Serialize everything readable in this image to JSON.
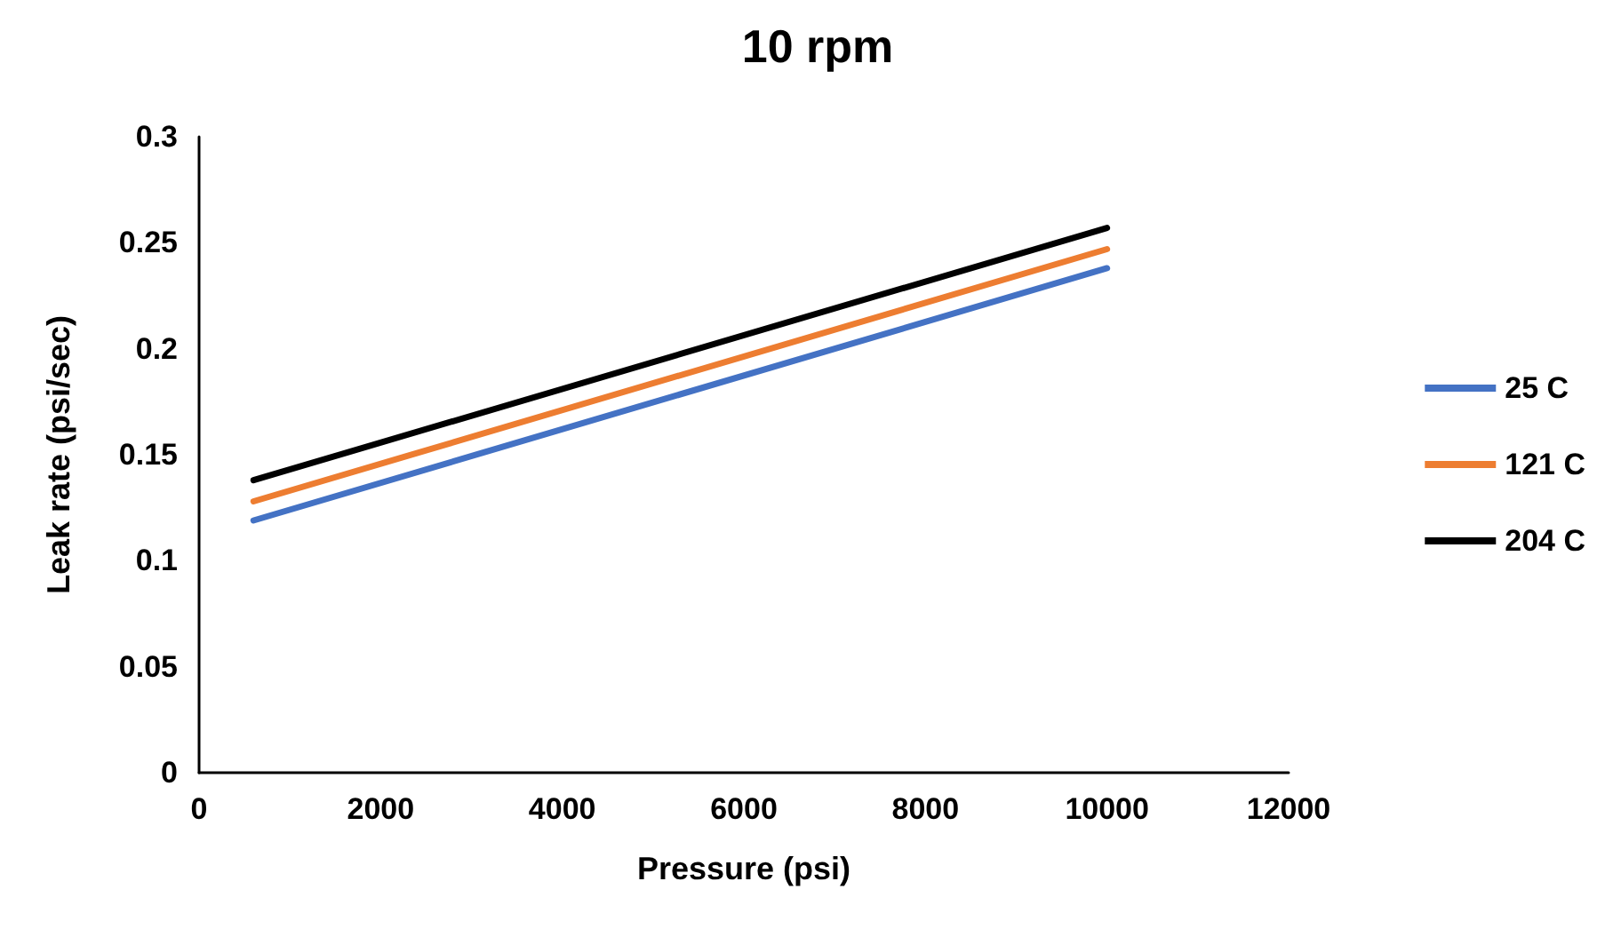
{
  "chart_data": {
    "type": "line",
    "title": "10 rpm",
    "xlabel": "Pressure (psi)",
    "ylabel": "Leak rate (psi/sec)",
    "xlim": [
      0,
      12000
    ],
    "xticks": [
      0,
      2000,
      4000,
      6000,
      8000,
      10000,
      12000
    ],
    "ylim": [
      0,
      0.3
    ],
    "yticks": [
      0,
      0.05,
      0.1,
      0.15,
      0.2,
      0.25,
      0.3
    ],
    "x": [
      600,
      10000
    ],
    "grid": false,
    "legend": "right",
    "marker": "none",
    "line_style": "solid",
    "series": [
      {
        "name": "25 C",
        "color": "#4472c4",
        "values": [
          0.119,
          0.238
        ]
      },
      {
        "name": "121 C",
        "color": "#ed7d31",
        "values": [
          0.128,
          0.247
        ]
      },
      {
        "name": "204 C",
        "color": "#000000",
        "values": [
          0.138,
          0.257
        ]
      }
    ]
  }
}
